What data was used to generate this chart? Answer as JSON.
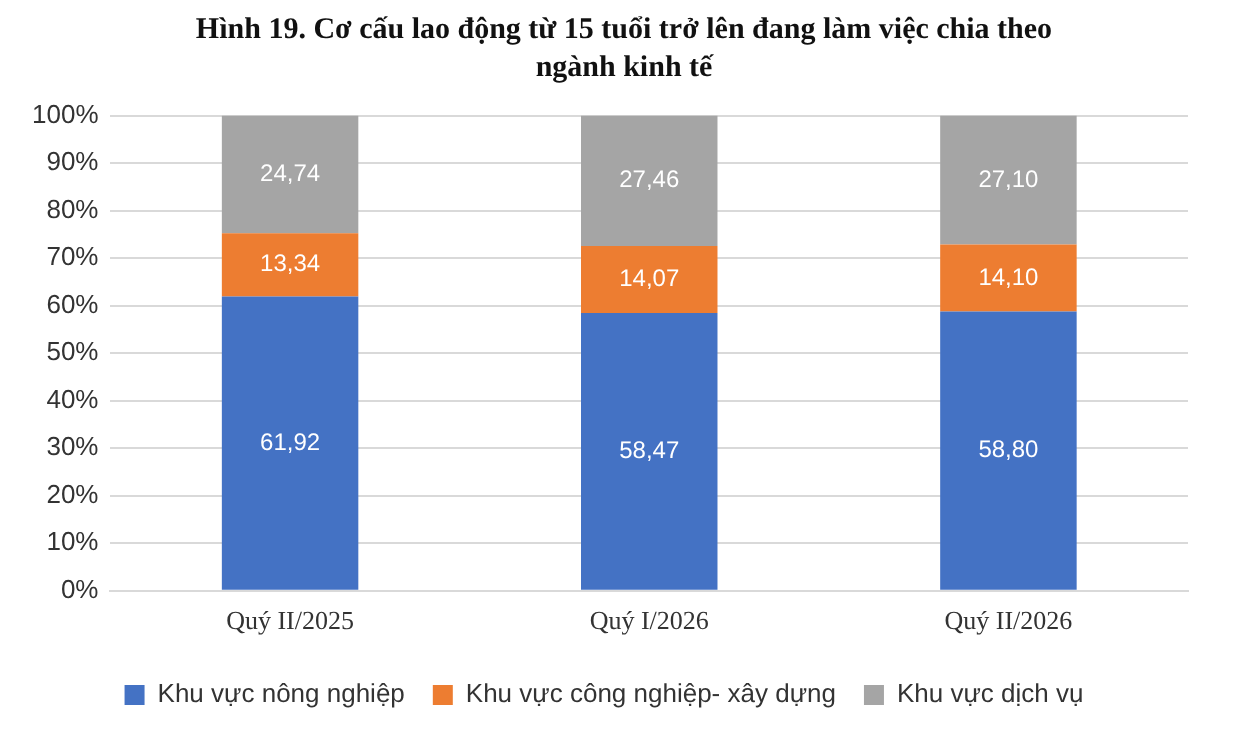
{
  "chart_data": {
    "type": "bar",
    "stacked": true,
    "title": "Hình 19. Cơ cấu lao động từ 15 tuổi trở lên đang làm việc chia theo ngành kinh tế",
    "categories": [
      "Quý II/2025",
      "Quý I/2026",
      "Quý II/2026"
    ],
    "series": [
      {
        "name": "Khu vực nông nghiệp",
        "color": "#4472c4",
        "values": [
          61.92,
          58.47,
          58.8
        ],
        "value_labels": [
          "61,92",
          "58,47",
          "58,80"
        ]
      },
      {
        "name": "Khu vực công nghiệp- xây dựng",
        "color": "#ed7d31",
        "values": [
          13.34,
          14.07,
          14.1
        ],
        "value_labels": [
          "13,34",
          "14,07",
          "14,10"
        ]
      },
      {
        "name": "Khu vực dịch vụ",
        "color": "#a5a5a5",
        "values": [
          24.74,
          27.46,
          27.1
        ],
        "value_labels": [
          "24,74",
          "27,46",
          "27,10"
        ]
      }
    ],
    "ylim": [
      0,
      100
    ],
    "yticks": [
      {
        "value": 0,
        "label": "0%"
      },
      {
        "value": 10,
        "label": "10%"
      },
      {
        "value": 20,
        "label": "20%"
      },
      {
        "value": 30,
        "label": "30%"
      },
      {
        "value": 40,
        "label": "40%"
      },
      {
        "value": 50,
        "label": "50%"
      },
      {
        "value": 60,
        "label": "60%"
      },
      {
        "value": 70,
        "label": "70%"
      },
      {
        "value": 80,
        "label": "80%"
      },
      {
        "value": 90,
        "label": "90%"
      },
      {
        "value": 100,
        "label": "100%"
      }
    ],
    "grid": "y",
    "legend": "bottom"
  }
}
